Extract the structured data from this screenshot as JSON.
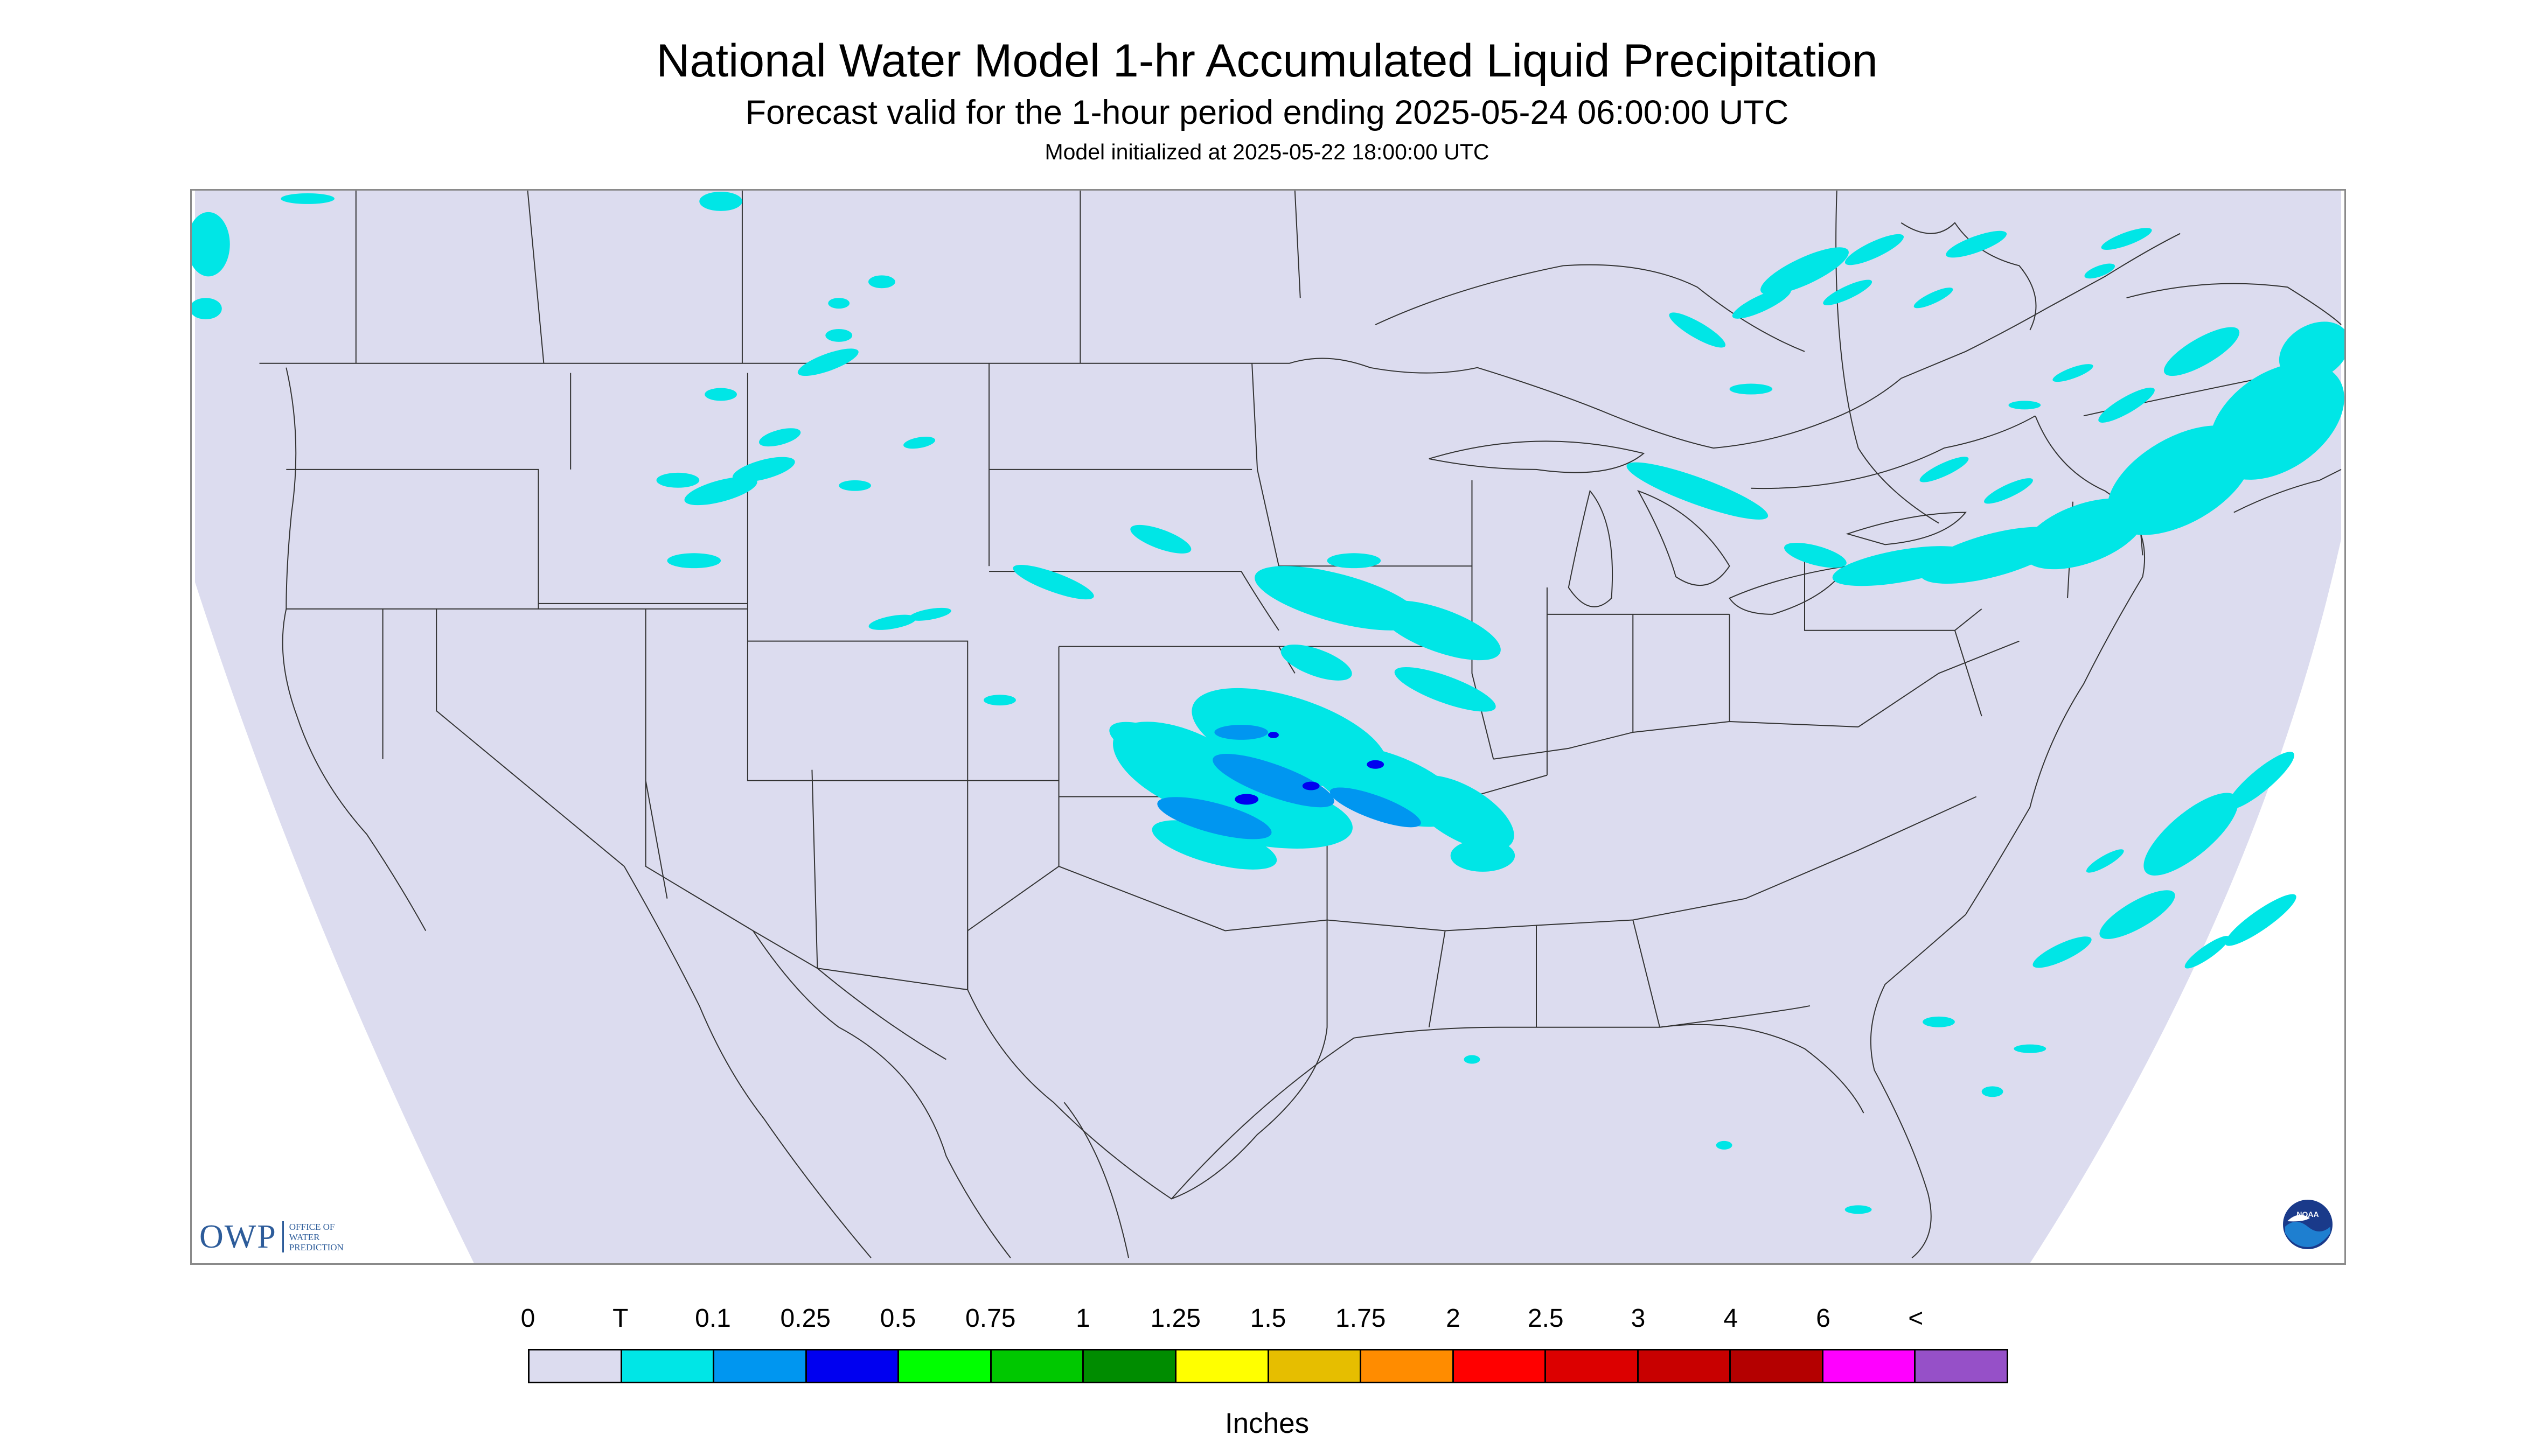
{
  "title": "National Water Model 1-hr Accumulated Liquid Precipitation",
  "subtitle": "Forecast valid for the 1-hour period ending 2025-05-24 06:00:00 UTC",
  "init_line": "Model initialized at 2025-05-22 18:00:00 UTC",
  "legend": {
    "unit": "Inches",
    "labels": [
      "0",
      "T",
      "0.1",
      "0.25",
      "0.5",
      "0.75",
      "1",
      "1.25",
      "1.5",
      "1.75",
      "2",
      "2.5",
      "3",
      "4",
      "6",
      "<"
    ],
    "colors": [
      "#dcdcef",
      "#00e6e6",
      "#0096f0",
      "#0000f0",
      "#00ff00",
      "#00c800",
      "#008c00",
      "#ffff00",
      "#e6be00",
      "#ff8c00",
      "#ff0000",
      "#dc0000",
      "#c80000",
      "#b40000",
      "#ff00ff",
      "#9650c8"
    ]
  },
  "map": {
    "background_color": "#dcdcef",
    "precip_colors": {
      "trace": "#00e6e6",
      "light": "#0096f0",
      "moderate": "#0000f0"
    }
  },
  "logos": {
    "owp_mark": "OWP",
    "owp_name": [
      "Office of",
      "Water",
      "Prediction"
    ],
    "noaa_mark": "NOAA"
  }
}
